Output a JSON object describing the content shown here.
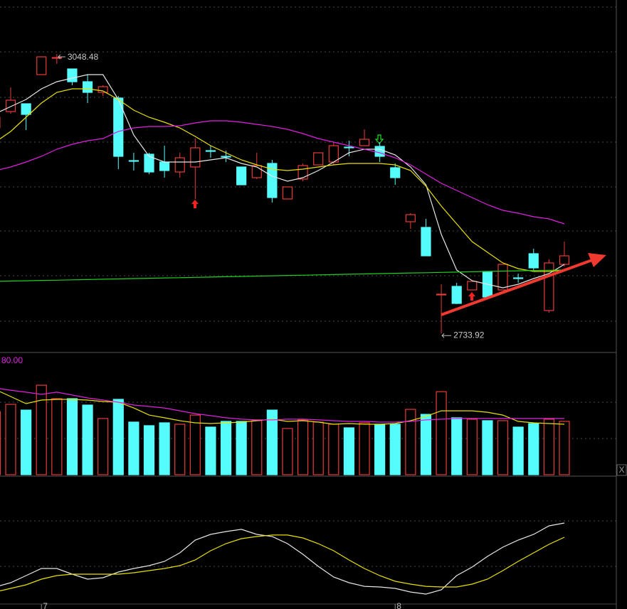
{
  "chart_data": [
    {
      "type": "candlestick",
      "categories": [
        null,
        null,
        null,
        "7",
        null,
        null,
        null,
        null,
        null,
        null,
        null,
        null,
        null,
        null,
        null,
        null,
        null,
        null,
        null,
        null,
        null,
        null,
        null,
        null,
        null,
        null,
        "8",
        null,
        null,
        null,
        null,
        null,
        null,
        null,
        null,
        null,
        null,
        null
      ],
      "open": [
        2965.3,
        2983.7,
        2992.5,
        3025.3,
        3043.7,
        3031.7,
        3017.3,
        3005.3,
        2998.9,
        2928.5,
        2935.7,
        2926.9,
        2915.7,
        2921.3,
        2939.7,
        2933.3,
        2921.3,
        2909.3,
        2925.3,
        2885.3,
        2907.7,
        2923.7,
        2926.9,
        2943.7,
        2945.3,
        2944.5,
        2920.5,
        2859.7,
        2853.3,
        2777.3,
        2786.9,
        2782.9,
        2803.7,
        2782.9,
        2796.5,
        2823.7,
        2759.7,
        2811.7
      ],
      "high": [
        2979.7,
        3010.9,
        2992.5,
        3045.3,
        3048.48,
        3031.7,
        3025.3,
        3013.3,
        3001.3,
        2937.3,
        2937.3,
        2945.3,
        2937.3,
        2953.3,
        2945.3,
        2939.7,
        2921.3,
        2937.3,
        2929.3,
        2898.9,
        2925.3,
        2937.3,
        2949.3,
        2950.9,
        2963.7,
        2949.3,
        2925.3,
        2869.3,
        2862.9,
        2789.3,
        2790.9,
        2792.5,
        2803.7,
        2811.7,
        2801.3,
        2829.3,
        2817.3,
        2837.3
      ],
      "low": [
        2963.7,
        2981.3,
        2962.9,
        3025.3,
        3037.3,
        3013.3,
        2993.3,
        3001.3,
        2918.9,
        2917.3,
        2913.3,
        2909.3,
        2909.3,
        2885.3,
        2931.7,
        2926.9,
        2901.3,
        2907.7,
        2881.3,
        2885.3,
        2905.3,
        2923.7,
        2923.7,
        2933.3,
        2945.3,
        2926.9,
        2901.3,
        2851.7,
        2821.3,
        2733.92,
        2766.9,
        2782.9,
        2774.9,
        2782.9,
        2790.9,
        2805.3,
        2757.3,
        2809.3
      ],
      "close": [
        2977.3,
        2996.5,
        2980.5,
        3045.3,
        3044.5,
        3017.3,
        3005.3,
        3011.7,
        2933.3,
        2927.7,
        2915.7,
        2917.3,
        2931.7,
        2942.9,
        2938.9,
        2932.5,
        2901.3,
        2922.9,
        2886.9,
        2898.9,
        2922.9,
        2937.3,
        2945.3,
        2943.0,
        2952.5,
        2933.3,
        2909.3,
        2867.7,
        2821.3,
        2778.1,
        2767.7,
        2792.5,
        2774.9,
        2811.7,
        2795.7,
        2807.7,
        2813.3,
        2821.3
      ],
      "up_color": "#e83a3a",
      "down_color": "#54fcfc",
      "lines": [
        {
          "color": "#e6e6e6",
          "values": [
            2981.3,
            2989.3,
            2997.3,
            3009.3,
            3017.3,
            3021.3,
            3025.3,
            3025.3,
            2997.3,
            2957.3,
            2933.3,
            2926.9,
            2926.9,
            2926.9,
            2929.3,
            2931.7,
            2925.3,
            2921.3,
            2910.9,
            2905.3,
            2909.3,
            2917.3,
            2926.9,
            2937.3,
            2941.3,
            2941.3,
            2934.9,
            2921.3,
            2901.3,
            2845.3,
            2805.3,
            2793.3,
            2789.3,
            2785.3,
            2789.3,
            2795.7,
            2801.3,
            2811.7
          ]
        },
        {
          "color": "#e8e000",
          "values": [
            2949.3,
            2961.3,
            2977.3,
            2993.3,
            3005.3,
            3009.3,
            3009.3,
            3006.9,
            2997.3,
            2985.3,
            2977.3,
            2971.7,
            2965.3,
            2955.7,
            2945.3,
            2937.3,
            2929.3,
            2923.7,
            2918.9,
            2917.3,
            2918.9,
            2921.3,
            2923.7,
            2925.3,
            2925.3,
            2925.3,
            2923.7,
            2917.3,
            2899.7,
            2877.3,
            2857.3,
            2837.3,
            2825.3,
            2813.3,
            2806.9,
            2803.7,
            2803.7,
            2805.3
          ]
        },
        {
          "color": "#e020e0",
          "values": [
            2917.3,
            2921.3,
            2926.9,
            2933.3,
            2941.3,
            2946.9,
            2950.9,
            2953.3,
            2961.3,
            2965.3,
            2966.9,
            2966.9,
            2967.7,
            2970.9,
            2973.3,
            2973.3,
            2971.7,
            2969.3,
            2966.9,
            2963.7,
            2958.9,
            2953.3,
            2949.3,
            2945.3,
            2941.3,
            2937.3,
            2931.7,
            2923.7,
            2913.3,
            2902.9,
            2894.9,
            2886.9,
            2878.9,
            2872.5,
            2869.3,
            2865.3,
            2862.9,
            2857.3
          ]
        },
        {
          "color": "#20d020",
          "values": [
            2792.5,
            2792.9,
            2793.2,
            2793.6,
            2793.9,
            2794.3,
            2794.6,
            2795.0,
            2795.3,
            2795.7,
            2796.0,
            2796.4,
            2796.7,
            2797.1,
            2797.4,
            2797.8,
            2798.1,
            2798.5,
            2798.8,
            2799.2,
            2799.5,
            2799.9,
            2800.2,
            2800.6,
            2800.9,
            2801.3,
            2801.6,
            2802.0,
            2802.3,
            2802.7,
            2803.0,
            2803.4,
            2803.7,
            2804.1,
            2804.4,
            2804.8,
            2805.1,
            2805.5
          ]
        }
      ],
      "ylim": [
        2713.3,
        3109.3
      ],
      "yticks": [
        3101.3,
        3050.9,
        2999.7,
        2949.3,
        2898.9,
        2849.3,
        2798.9,
        2747.7
      ],
      "grid": true,
      "high_label": "3048.48",
      "low_label": "2733.92"
    },
    {
      "type": "volume",
      "label": "80.00",
      "label_color": "#e020e0",
      "values": [
        44.2,
        49.2,
        45.2,
        62.6,
        53.2,
        53.2,
        48.7,
        39.3,
        52.7,
        36.8,
        34.3,
        36.3,
        35.3,
        41.7,
        33.3,
        37.3,
        37.3,
        37.8,
        45.2,
        32.3,
        38.3,
        36.8,
        35.3,
        32.8,
        36.3,
        35.3,
        35.3,
        45.7,
        42.2,
        58.1,
        39.8,
        38.8,
        37.8,
        37.8,
        33.3,
        35.8,
        38.8,
        37.3
      ],
      "lines": [
        {
          "color": "#e8e000",
          "values": [
            59.6,
            54.7,
            49.7,
            52.2,
            52.7,
            52.7,
            52.2,
            51.2,
            50.7,
            46.7,
            41.7,
            39.8,
            37.8,
            36.3,
            35.8,
            36.3,
            36.8,
            37.8,
            38.8,
            37.3,
            37.8,
            36.8,
            35.3,
            35.8,
            35.3,
            35.3,
            35.8,
            37.8,
            40.8,
            44.7,
            44.7,
            44.7,
            43.7,
            41.7,
            37.3,
            36.3,
            35.8,
            35.3
          ]
        },
        {
          "color": "#e020e0",
          "values": [
            60.6,
            59.1,
            57.7,
            56.2,
            57.7,
            55.7,
            53.7,
            52.2,
            50.7,
            48.7,
            47.7,
            46.7,
            44.7,
            42.7,
            41.3,
            39.8,
            38.8,
            38.3,
            38.3,
            38.8,
            38.8,
            38.3,
            37.8,
            37.3,
            37.3,
            36.8,
            36.8,
            37.3,
            38.3,
            38.8,
            39.3,
            39.3,
            39.3,
            39.3,
            39.3,
            39.3,
            39.3,
            39.3
          ]
        }
      ],
      "ylim": [
        0,
        85
      ],
      "yticks": [
        25.3,
        50.7
      ],
      "grid": true
    },
    {
      "type": "line",
      "lines": [
        {
          "color": "#e6e6e6",
          "values": [
            -7.2,
            -1.6,
            7.8,
            17.2,
            17.2,
            9.7,
            3.1,
            5,
            12.5,
            17.2,
            20.9,
            26.6,
            37.8,
            54.7,
            62.2,
            65.9,
            68.8,
            62.2,
            59.4,
            50,
            35.9,
            20,
            5.9,
            -1.6,
            -6.3,
            -7.2,
            -9.1,
            -13.8,
            -16.6,
            -10.9,
            7.8,
            19.1,
            33.1,
            45.3,
            54.7,
            62.2,
            73.4,
            77.2
          ]
        },
        {
          "color": "#e8e000",
          "values": [
            -13.8,
            -9.1,
            -4.4,
            3.1,
            7.8,
            9.7,
            9.7,
            9.7,
            9.7,
            11.6,
            14.4,
            17.2,
            20.9,
            28.4,
            40.6,
            50,
            56.6,
            59.4,
            61.3,
            61.3,
            57.5,
            50,
            40.6,
            28.4,
            17.2,
            7.8,
            0.3,
            -3.4,
            -6.3,
            -7.2,
            -7.2,
            -3.4,
            3.1,
            14.4,
            26.6,
            37.8,
            49.1,
            58.4
          ]
        }
      ],
      "ylim": [
        -36.25,
        137.19
      ],
      "yticks": [
        20,
        80
      ],
      "grid": true
    }
  ],
  "close_button": "X"
}
